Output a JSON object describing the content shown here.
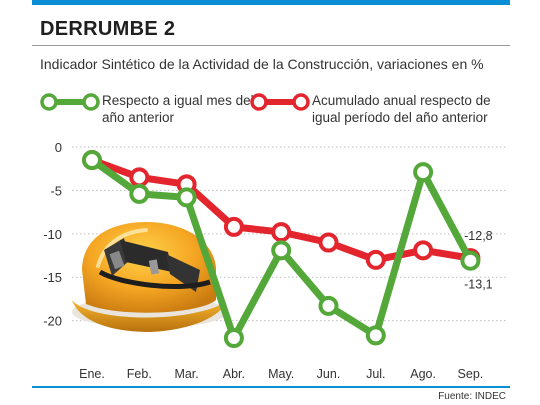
{
  "title": "DERRUMBE 2",
  "subtitle": "Indicador Sintético de la Actividad de la Construcción, variaciones en %",
  "colors": {
    "accent": "#0a8fd6",
    "green": "#54a83a",
    "red": "#e3262e",
    "grid": "#bdbdbd",
    "text": "#333333"
  },
  "legend": [
    {
      "label": "Respecto a igual mes del año anterior",
      "color": "#54a83a"
    },
    {
      "label": "Acumulado anual respecto de igual período del año anterior",
      "color": "#e3262e"
    }
  ],
  "chart_data": {
    "type": "line",
    "categories": [
      "Ene.",
      "Feb.",
      "Mar.",
      "Abr.",
      "May.",
      "Jun.",
      "Jul.",
      "Ago.",
      "Sep."
    ],
    "ylim": [
      -22,
      0
    ],
    "yticks": [
      0,
      -5,
      -10,
      -15,
      -20
    ],
    "ytick_labels": [
      "0",
      "-5",
      "-10",
      "-15",
      "-20"
    ],
    "grid": true,
    "series": [
      {
        "name": "Respecto a igual mes del año anterior",
        "color": "#54a83a",
        "values": [
          -1.5,
          -5.4,
          -5.8,
          -22.0,
          -11.9,
          -18.3,
          -21.7,
          -2.9,
          -13.1
        ]
      },
      {
        "name": "Acumulado anual respecto de igual período del año anterior",
        "color": "#e3262e",
        "values": [
          -1.5,
          -3.5,
          -4.3,
          -9.2,
          -9.8,
          -11.0,
          -13.0,
          -11.9,
          -12.8
        ]
      }
    ],
    "annotations": [
      {
        "text": "-12,8",
        "series": 1,
        "index": 8,
        "position": "above"
      },
      {
        "text": "-13,1",
        "series": 0,
        "index": 8,
        "position": "below"
      }
    ]
  },
  "source": "Fuente: INDEC",
  "image": {
    "label": "hard-hat-illustration"
  }
}
